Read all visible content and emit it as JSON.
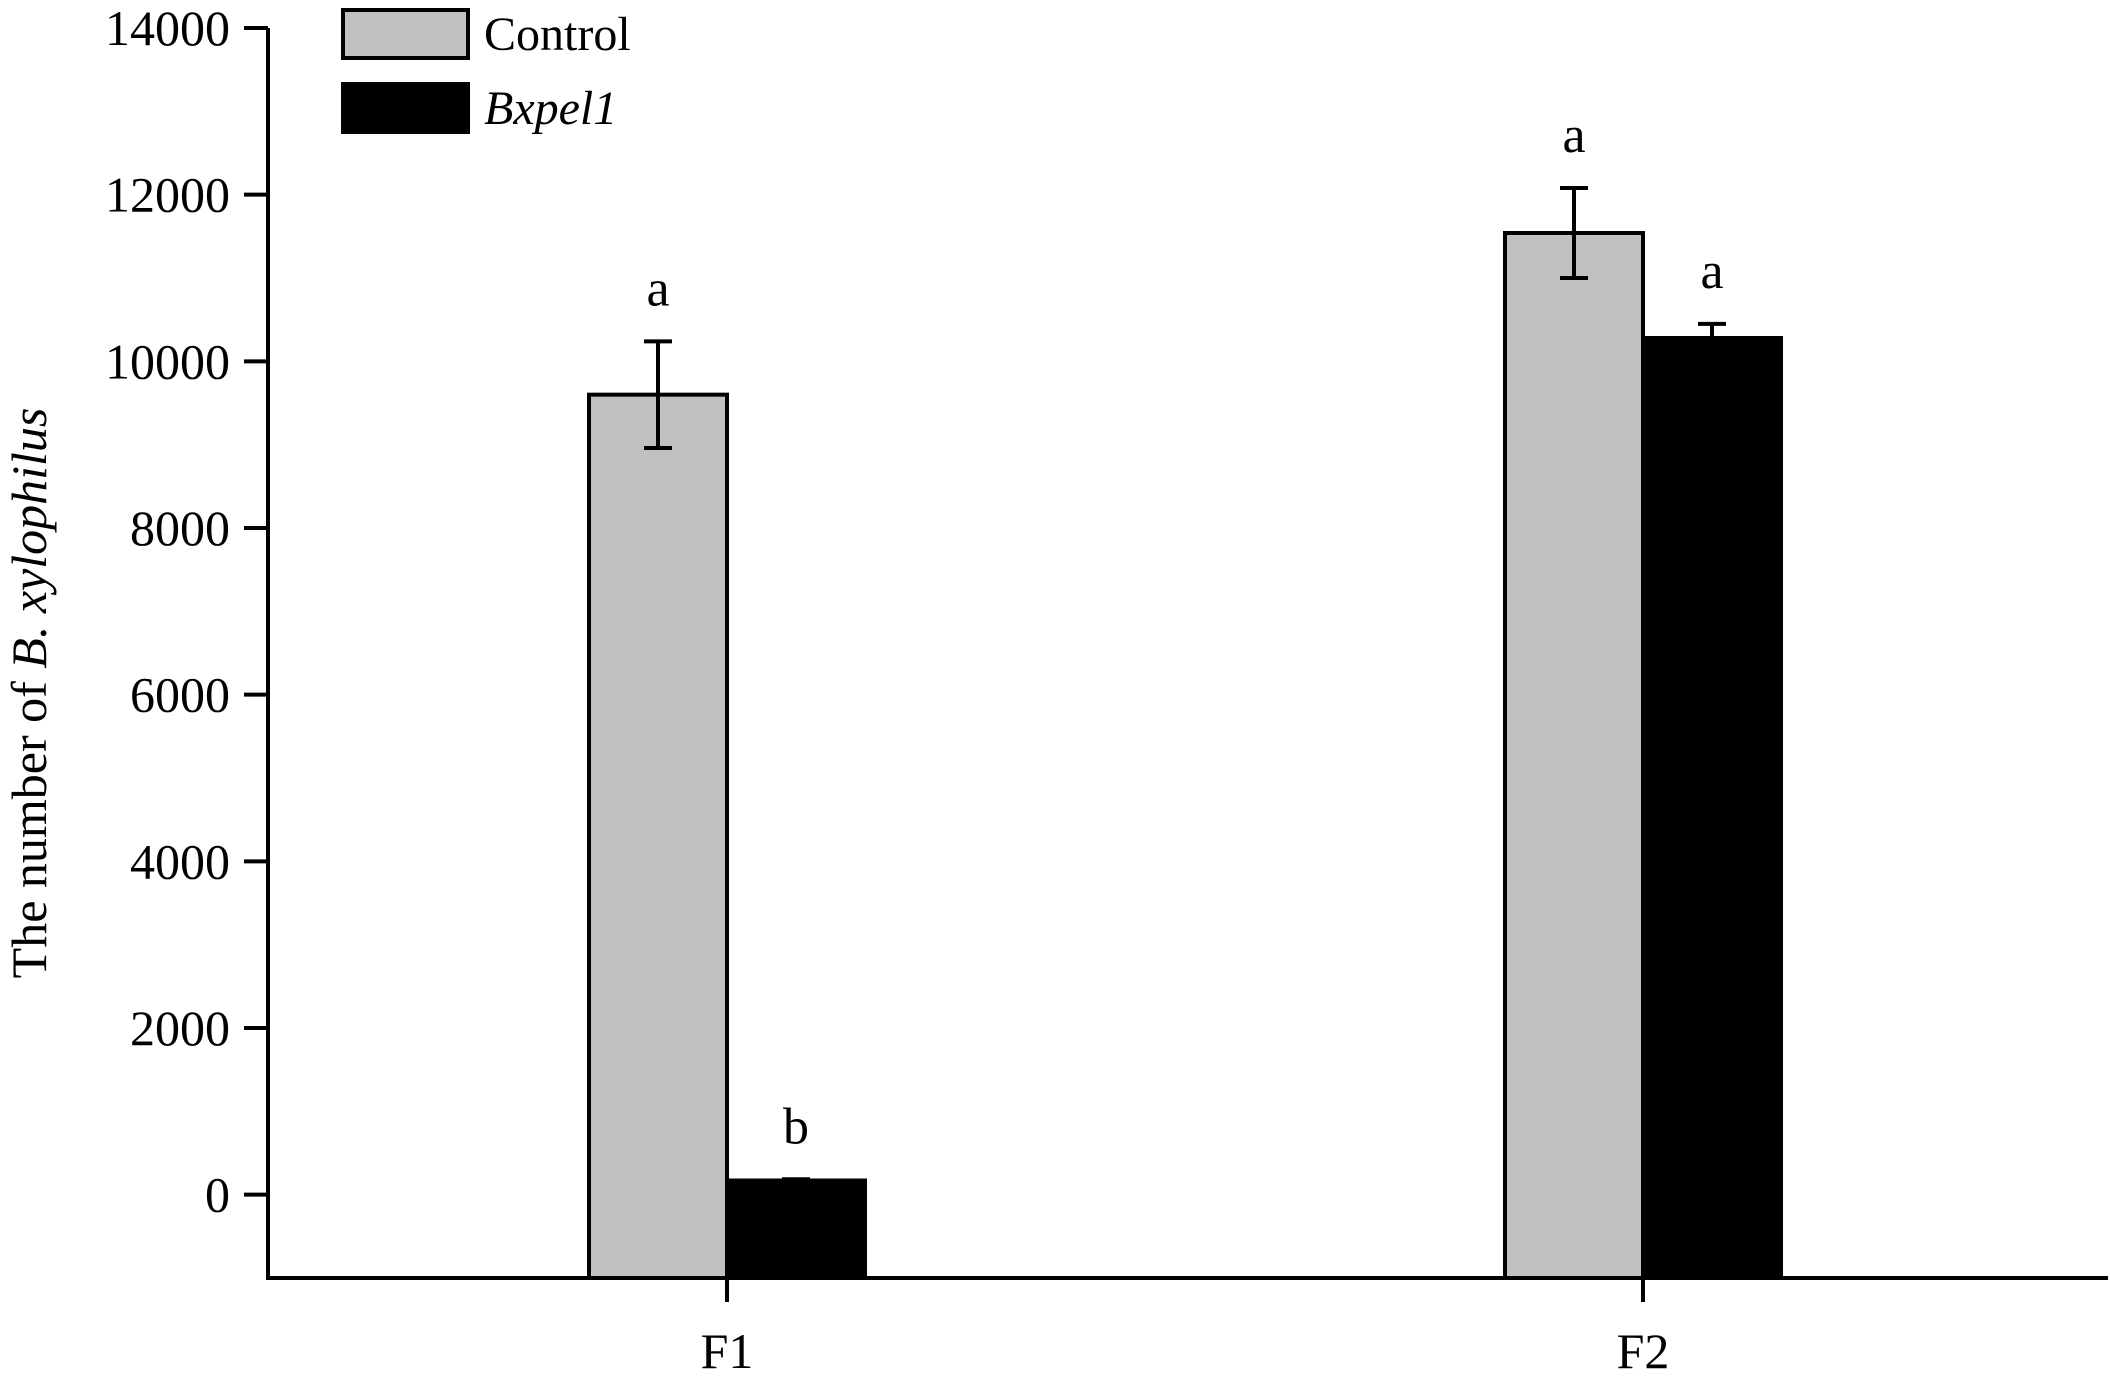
{
  "chart_data": {
    "type": "bar",
    "categories": [
      "F1",
      "F2"
    ],
    "series": [
      {
        "name": "Control",
        "color": "#c0c0c0",
        "italic": false,
        "values": [
          9600,
          11540
        ],
        "errors": [
          640,
          540
        ],
        "significance": [
          "a",
          "a"
        ]
      },
      {
        "name": "Bxpel1",
        "color": "#000000",
        "italic": true,
        "values": [
          170,
          10280
        ],
        "errors": [
          15,
          170
        ],
        "significance": [
          "b",
          "a"
        ]
      }
    ],
    "ylabel_prefix": "The number of ",
    "ylabel_italic": "B. xylophilus",
    "xlabel": "",
    "title": "",
    "ylim": [
      -1000,
      14000
    ],
    "yticks": [
      0,
      2000,
      4000,
      6000,
      8000,
      10000,
      12000,
      14000
    ],
    "grid": false,
    "legend_position": "top-left"
  }
}
